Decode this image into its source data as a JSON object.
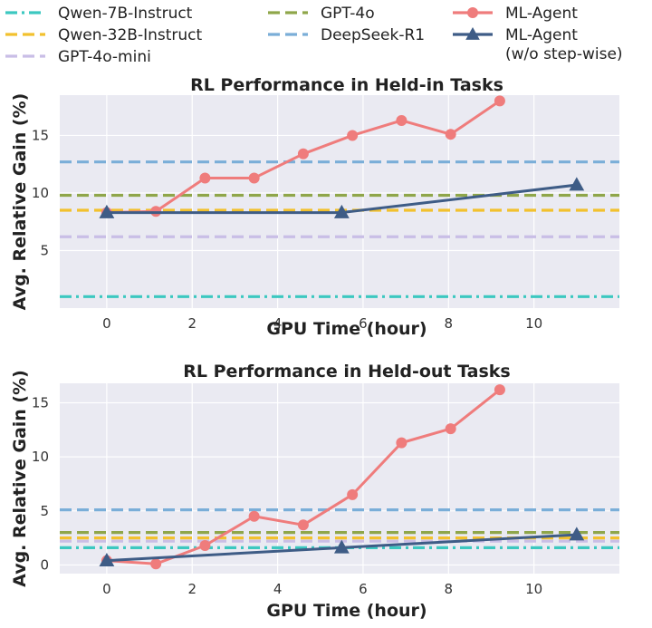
{
  "legend": [
    {
      "label": "Qwen-7B-Instruct",
      "color": "#3cc8c0",
      "style": "dashdot",
      "marker": "none"
    },
    {
      "label": "Qwen-32B-Instruct",
      "color": "#f2c12e",
      "style": "dashed",
      "marker": "none"
    },
    {
      "label": "GPT-4o-mini",
      "color": "#c9bee6",
      "style": "dashed",
      "marker": "none"
    },
    {
      "label": "GPT-4o",
      "color": "#8fa64a",
      "style": "dashed",
      "marker": "none"
    },
    {
      "label": "DeepSeek-R1",
      "color": "#7aaed8",
      "style": "dashed",
      "marker": "none"
    },
    {
      "label": "ML-Agent",
      "color": "#ef7c7c",
      "style": "solid",
      "marker": "circle"
    },
    {
      "label": "ML-Agent\n(w/o step-wise)",
      "color": "#3e5c86",
      "style": "solid",
      "marker": "triangle"
    }
  ],
  "chart_data": [
    {
      "type": "line",
      "title": "RL Performance in Held-in Tasks",
      "xlabel": "GPU Time (hour)",
      "ylabel": "Avg. Relative Gain (%)",
      "xlim": [
        -1.1,
        12.0
      ],
      "ylim": [
        0.0,
        18.5
      ],
      "xticks": [
        0,
        2,
        4,
        6,
        8,
        10
      ],
      "yticks": [
        5,
        10,
        15
      ],
      "grid": true,
      "baselines": [
        {
          "name": "Qwen-7B-Instruct",
          "value": 1.0
        },
        {
          "name": "Qwen-32B-Instruct",
          "value": 8.5
        },
        {
          "name": "GPT-4o-mini",
          "value": 6.2
        },
        {
          "name": "GPT-4o",
          "value": 9.8
        },
        {
          "name": "DeepSeek-R1",
          "value": 12.7
        }
      ],
      "series": [
        {
          "name": "ML-Agent",
          "x": [
            0,
            1.15,
            2.3,
            3.45,
            4.6,
            5.75,
            6.9,
            8.05,
            9.2
          ],
          "y": [
            8.3,
            8.4,
            11.3,
            11.3,
            13.4,
            15.0,
            16.3,
            15.1,
            18.0
          ]
        },
        {
          "name": "ML-Agent\n(w/o step-wise)",
          "x": [
            0,
            5.5,
            11.0
          ],
          "y": [
            8.3,
            8.3,
            10.7
          ]
        }
      ]
    },
    {
      "type": "line",
      "title": "RL Performance in Held-out Tasks",
      "xlabel": "GPU Time (hour)",
      "ylabel": "Avg. Relative Gain (%)",
      "xlim": [
        -1.1,
        12.0
      ],
      "ylim": [
        -0.8,
        16.8
      ],
      "xticks": [
        0,
        2,
        4,
        6,
        8,
        10
      ],
      "yticks": [
        0,
        5,
        10,
        15
      ],
      "grid": true,
      "baselines": [
        {
          "name": "Qwen-7B-Instruct",
          "value": 1.6
        },
        {
          "name": "Qwen-32B-Instruct",
          "value": 2.5
        },
        {
          "name": "GPT-4o-mini",
          "value": 2.2
        },
        {
          "name": "GPT-4o",
          "value": 3.0
        },
        {
          "name": "DeepSeek-R1",
          "value": 5.1
        }
      ],
      "series": [
        {
          "name": "ML-Agent",
          "x": [
            0,
            1.15,
            2.3,
            3.45,
            4.6,
            5.75,
            6.9,
            8.05,
            9.2
          ],
          "y": [
            0.4,
            0.1,
            1.8,
            4.5,
            3.7,
            6.5,
            11.3,
            12.6,
            16.2
          ]
        },
        {
          "name": "ML-Agent\n(w/o step-wise)",
          "x": [
            0,
            5.5,
            11.0
          ],
          "y": [
            0.4,
            1.6,
            2.8
          ]
        }
      ]
    }
  ]
}
